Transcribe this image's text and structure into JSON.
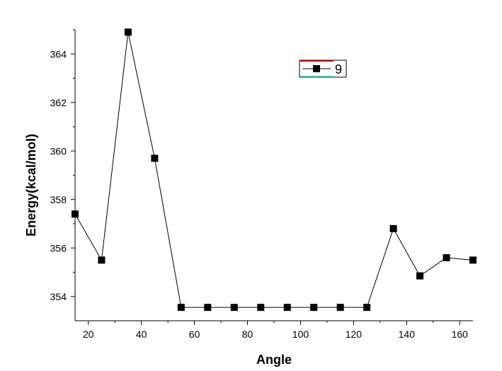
{
  "chart_data": {
    "type": "line",
    "xlabel": "Angle",
    "ylabel": "Energy(kcal/mol)",
    "xlim": [
      15,
      165
    ],
    "ylim": [
      353,
      365
    ],
    "x_ticks": [
      20,
      40,
      60,
      80,
      100,
      120,
      140,
      160
    ],
    "y_ticks": [
      354,
      356,
      358,
      360,
      362,
      364
    ],
    "grid": false,
    "legend": "top-right",
    "series": [
      {
        "name": "9",
        "color": "#000000",
        "marker": "square",
        "x": [
          15,
          25,
          35,
          45,
          55,
          65,
          75,
          85,
          95,
          105,
          115,
          125,
          135,
          145,
          155,
          165
        ],
        "y": [
          357.4,
          355.5,
          364.9,
          359.7,
          353.55,
          353.55,
          353.55,
          353.55,
          353.55,
          353.55,
          353.55,
          353.55,
          356.8,
          354.85,
          355.6,
          355.5
        ]
      }
    ]
  }
}
